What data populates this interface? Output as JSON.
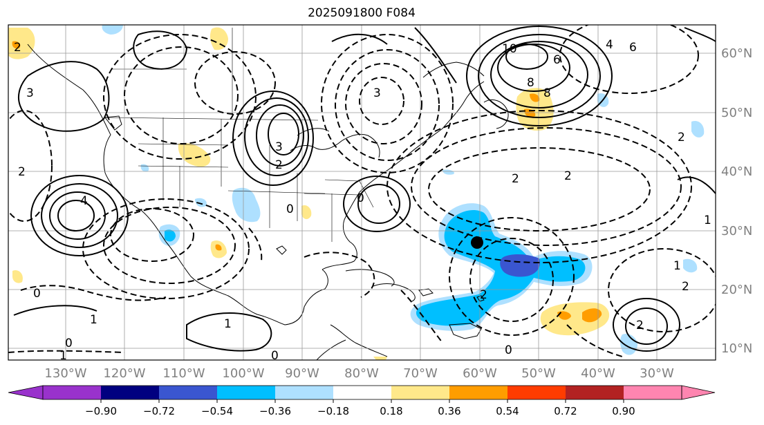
{
  "map": {
    "title": "2025091800 F084",
    "lon_labels": [
      "130°W",
      "120°W",
      "110°W",
      "100°W",
      "90°W",
      "80°W",
      "70°W",
      "60°W",
      "50°W",
      "40°W",
      "30°W"
    ],
    "lat_labels": [
      "60°N",
      "50°N",
      "40°N",
      "30°N",
      "20°N",
      "10°N"
    ],
    "colors": {
      "neg_extreme": "#9932cc",
      "neg_090": "#000080",
      "neg_072": "#3a56d0",
      "neg_054": "#00bfff",
      "neg_036": "#aee0ff",
      "neutral": "#ffffff",
      "pos_018": "#ffe88a",
      "pos_036": "#ff9d00",
      "pos_054": "#ff3c00",
      "pos_072": "#b22222",
      "pos_extreme": "#ff85b0"
    },
    "storm_marker": "black-dot",
    "contour_labels": [
      "10",
      "8",
      "8",
      "6",
      "6",
      "4",
      "3",
      "2",
      "2",
      "2",
      "2",
      "2",
      "0",
      "0",
      "0",
      "0",
      "0",
      "1",
      "1",
      "1",
      "1",
      "2",
      "3",
      "4",
      "3",
      "2",
      "2",
      "0",
      "1",
      "2"
    ]
  },
  "colorbar": {
    "tick_labels": [
      "−0.90",
      "−0.72",
      "−0.54",
      "−0.36",
      "−0.18",
      "0.18",
      "0.36",
      "0.54",
      "0.72",
      "0.90"
    ]
  }
}
